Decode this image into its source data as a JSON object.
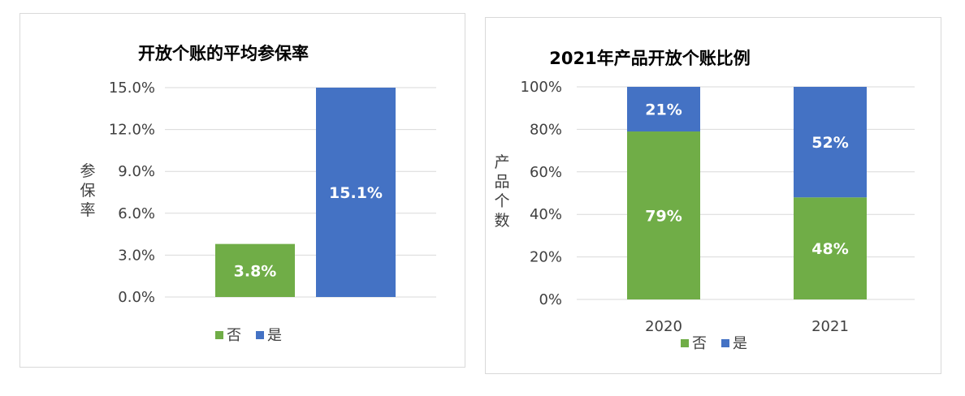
{
  "colors": {
    "no": "#70ad47",
    "yes": "#4472c4"
  },
  "chart_data": [
    {
      "type": "bar",
      "title": "开放个账的平均参保率",
      "ylabel": "参保率",
      "xlabel": "",
      "ylim": [
        0,
        15.0
      ],
      "yticks": [
        "0.0%",
        "3.0%",
        "6.0%",
        "9.0%",
        "12.0%",
        "15.0%"
      ],
      "series": [
        {
          "name": "否",
          "value": 3.8,
          "label": "3.8%"
        },
        {
          "name": "是",
          "value": 15.1,
          "label": "15.1%"
        }
      ],
      "legend": [
        "否",
        "是"
      ],
      "legend_position": "bottom",
      "grid": true
    },
    {
      "type": "bar",
      "stacked": true,
      "title": "2021年产品开放个账比例",
      "ylabel": "产品个数",
      "xlabel": "",
      "ylim": [
        0,
        100
      ],
      "yticks": [
        "0%",
        "20%",
        "40%",
        "60%",
        "80%",
        "100%"
      ],
      "categories": [
        "2020",
        "2021"
      ],
      "series": [
        {
          "name": "否",
          "values": [
            79,
            48
          ],
          "labels": [
            "79%",
            "48%"
          ]
        },
        {
          "name": "是",
          "values": [
            21,
            52
          ],
          "labels": [
            "21%",
            "52%"
          ]
        }
      ],
      "legend": [
        "否",
        "是"
      ],
      "legend_position": "bottom",
      "grid": true
    }
  ]
}
